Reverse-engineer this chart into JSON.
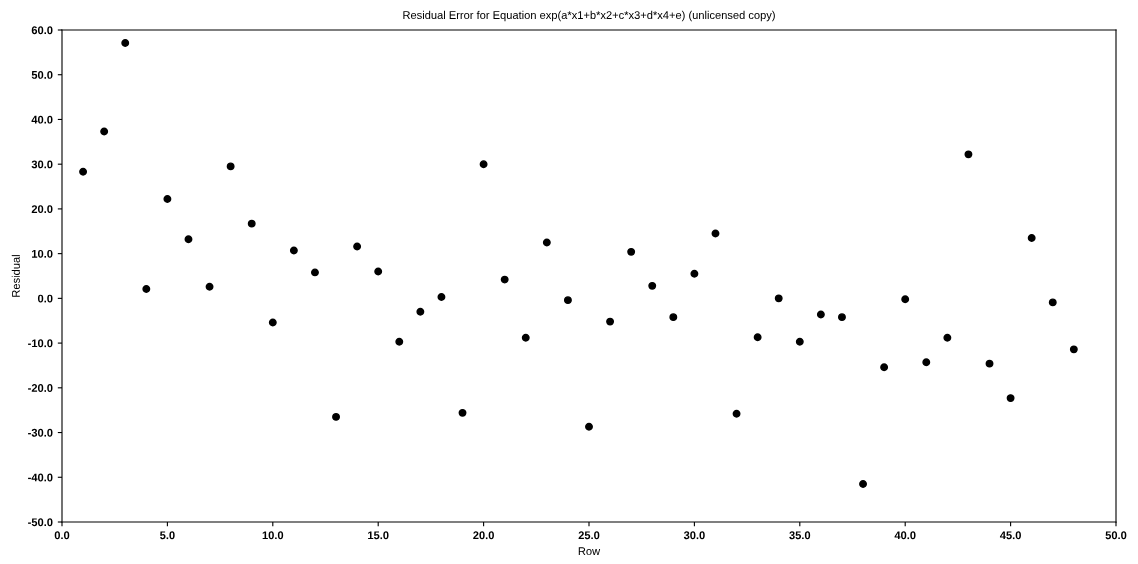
{
  "chart_data": {
    "type": "scatter",
    "title": "Residual Error for Equation exp(a*x1+b*x2+c*x3+d*x4+e) (unlicensed copy)",
    "xlabel": "Row",
    "ylabel": "Residual",
    "x": [
      1,
      2,
      3,
      4,
      5,
      6,
      7,
      8,
      9,
      10,
      11,
      12,
      13,
      14,
      15,
      16,
      17,
      18,
      19,
      20,
      21,
      22,
      23,
      24,
      25,
      26,
      27,
      28,
      29,
      30,
      31,
      32,
      33,
      34,
      35,
      36,
      37,
      38,
      39,
      40,
      41,
      42,
      43,
      44,
      45,
      46,
      47,
      48
    ],
    "series": [
      {
        "color": "#000000",
        "values": [
          28.3,
          37.3,
          57.1,
          2.1,
          22.2,
          13.2,
          2.6,
          29.5,
          16.7,
          -5.4,
          10.7,
          5.8,
          -26.5,
          11.6,
          6.0,
          -9.7,
          -3.0,
          0.3,
          -25.6,
          30.0,
          4.2,
          -8.8,
          12.5,
          -0.4,
          -28.7,
          -5.2,
          10.4,
          2.8,
          -4.2,
          5.5,
          14.5,
          -25.8,
          -8.7,
          0.0,
          -9.7,
          -3.6,
          -4.2,
          -41.5,
          -15.4,
          -0.2,
          -14.3,
          -8.8,
          32.2,
          -14.6,
          -22.3,
          13.5,
          -0.9,
          -11.4
        ]
      }
    ],
    "xlim": [
      0,
      50
    ],
    "ylim": [
      -50,
      60
    ],
    "xticks": [
      {
        "value": 0,
        "label": "0.0"
      },
      {
        "value": 5,
        "label": "5.0"
      },
      {
        "value": 10,
        "label": "10.0"
      },
      {
        "value": 15,
        "label": "15.0"
      },
      {
        "value": 20,
        "label": "20.0"
      },
      {
        "value": 25,
        "label": "25.0"
      },
      {
        "value": 30,
        "label": "30.0"
      },
      {
        "value": 35,
        "label": "35.0"
      },
      {
        "value": 40,
        "label": "40.0"
      },
      {
        "value": 45,
        "label": "45.0"
      },
      {
        "value": 50,
        "label": "50.0"
      }
    ],
    "yticks": [
      {
        "value": -50,
        "label": "-50.0"
      },
      {
        "value": -40,
        "label": "-40.0"
      },
      {
        "value": -30,
        "label": "-30.0"
      },
      {
        "value": -20,
        "label": "-20.0"
      },
      {
        "value": -10,
        "label": "-10.0"
      },
      {
        "value": 0,
        "label": "0.0"
      },
      {
        "value": 10,
        "label": "10.0"
      },
      {
        "value": 20,
        "label": "20.0"
      },
      {
        "value": 30,
        "label": "30.0"
      },
      {
        "value": 40,
        "label": "40.0"
      },
      {
        "value": 50,
        "label": "50.0"
      },
      {
        "value": 60,
        "label": "60.0"
      }
    ],
    "marker": "circle",
    "grid": false
  }
}
